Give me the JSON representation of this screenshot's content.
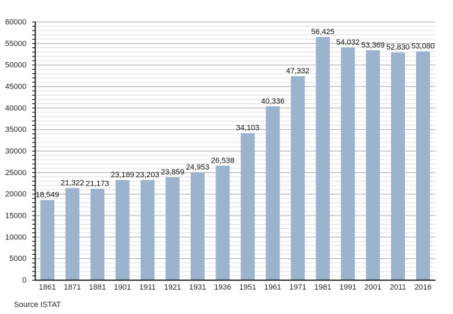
{
  "chart_data": {
    "type": "bar",
    "categories": [
      "1861",
      "1871",
      "1881",
      "1901",
      "1911",
      "1921",
      "1931",
      "1936",
      "1951",
      "1961",
      "1971",
      "1981",
      "1991",
      "2001",
      "2011",
      "2016"
    ],
    "values": [
      18549,
      21322,
      21173,
      23189,
      23203,
      23859,
      24953,
      26538,
      34103,
      40336,
      47332,
      56425,
      54032,
      53369,
      52830,
      53080
    ],
    "data_labels": [
      "18,549",
      "21,322",
      "21,173",
      "23,189",
      "23,203",
      "23,859",
      "24,953",
      "26,538",
      "34,103",
      "40,336",
      "47,332",
      "56,425",
      "54,032",
      "53,369",
      "52,830",
      "53,080"
    ],
    "ylim": [
      0,
      60000
    ],
    "yticks": [
      0,
      5000,
      10000,
      15000,
      20000,
      25000,
      30000,
      35000,
      40000,
      45000,
      50000,
      55000,
      60000
    ],
    "grid": true,
    "bar_color": "#9bb3cc",
    "title": "",
    "xlabel": "",
    "ylabel": ""
  },
  "source": "Source ISTAT"
}
